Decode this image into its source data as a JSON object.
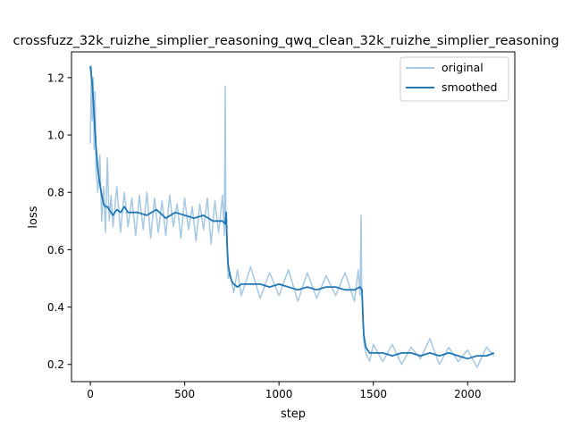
{
  "chart_data": {
    "type": "line",
    "title": "crossfuzz_32k_ruizhe_simplier_reasoning_qwq_clean_32k_ruizhe_simplier_reasoning",
    "xlabel": "step",
    "ylabel": "loss",
    "xlim": [
      -100,
      2250
    ],
    "ylim": [
      0.14,
      1.29
    ],
    "x_ticks": [
      0,
      500,
      1000,
      1500,
      2000
    ],
    "y_ticks": [
      0.2,
      0.4,
      0.6,
      0.8,
      1.0,
      1.2
    ],
    "x_tick_labels": [
      "0",
      "500",
      "1000",
      "1500",
      "2000"
    ],
    "y_tick_labels": [
      "0.2",
      "0.4",
      "0.6",
      "0.8",
      "1.0",
      "1.2"
    ],
    "grid": false,
    "legend_position": "top-right",
    "series": [
      {
        "name": "original",
        "color": "#a6c8e2",
        "x": [
          0,
          5,
          10,
          15,
          20,
          25,
          30,
          40,
          50,
          60,
          70,
          80,
          90,
          100,
          110,
          120,
          140,
          160,
          180,
          200,
          220,
          240,
          260,
          280,
          300,
          320,
          340,
          360,
          380,
          400,
          420,
          440,
          460,
          480,
          500,
          520,
          540,
          560,
          580,
          600,
          620,
          640,
          660,
          680,
          700,
          710,
          715,
          718,
          720,
          725,
          730,
          740,
          760,
          780,
          800,
          850,
          900,
          950,
          1000,
          1050,
          1100,
          1150,
          1200,
          1250,
          1300,
          1350,
          1400,
          1420,
          1430,
          1435,
          1438,
          1440,
          1445,
          1450,
          1460,
          1480,
          1500,
          1550,
          1600,
          1650,
          1700,
          1750,
          1800,
          1850,
          1900,
          1950,
          2000,
          2050,
          2100,
          2140
        ],
        "y": [
          0.97,
          1.24,
          1.05,
          1.2,
          0.95,
          1.15,
          0.88,
          0.8,
          0.93,
          0.7,
          0.82,
          0.66,
          0.92,
          0.7,
          0.79,
          0.68,
          0.82,
          0.66,
          0.8,
          0.68,
          0.78,
          0.65,
          0.79,
          0.67,
          0.8,
          0.64,
          0.78,
          0.66,
          0.77,
          0.65,
          0.79,
          0.68,
          0.76,
          0.64,
          0.78,
          0.67,
          0.75,
          0.63,
          0.76,
          0.67,
          0.78,
          0.62,
          0.77,
          0.66,
          0.79,
          0.65,
          1.17,
          0.7,
          0.68,
          0.6,
          0.5,
          0.52,
          0.45,
          0.53,
          0.44,
          0.54,
          0.43,
          0.52,
          0.44,
          0.53,
          0.42,
          0.52,
          0.43,
          0.51,
          0.44,
          0.52,
          0.42,
          0.53,
          0.44,
          0.72,
          0.48,
          0.46,
          0.38,
          0.28,
          0.24,
          0.21,
          0.27,
          0.21,
          0.27,
          0.2,
          0.26,
          0.22,
          0.29,
          0.2,
          0.26,
          0.21,
          0.25,
          0.19,
          0.26,
          0.23
        ]
      },
      {
        "name": "smoothed",
        "color": "#1f77b4",
        "x": [
          0,
          10,
          20,
          30,
          40,
          50,
          60,
          70,
          80,
          90,
          100,
          120,
          140,
          160,
          180,
          200,
          250,
          300,
          350,
          400,
          450,
          500,
          550,
          600,
          650,
          700,
          715,
          720,
          725,
          730,
          740,
          750,
          760,
          780,
          800,
          850,
          900,
          950,
          1000,
          1050,
          1100,
          1150,
          1200,
          1250,
          1300,
          1350,
          1400,
          1430,
          1440,
          1445,
          1450,
          1460,
          1470,
          1480,
          1500,
          1550,
          1600,
          1650,
          1700,
          1750,
          1800,
          1850,
          1900,
          1950,
          2000,
          2050,
          2100,
          2140
        ],
        "y": [
          1.24,
          1.18,
          1.07,
          0.96,
          0.88,
          0.83,
          0.79,
          0.76,
          0.75,
          0.75,
          0.74,
          0.72,
          0.74,
          0.73,
          0.75,
          0.73,
          0.73,
          0.72,
          0.74,
          0.71,
          0.73,
          0.72,
          0.71,
          0.72,
          0.7,
          0.7,
          0.69,
          0.73,
          0.62,
          0.55,
          0.51,
          0.49,
          0.48,
          0.47,
          0.48,
          0.48,
          0.48,
          0.47,
          0.48,
          0.47,
          0.46,
          0.47,
          0.46,
          0.47,
          0.47,
          0.46,
          0.46,
          0.47,
          0.46,
          0.36,
          0.3,
          0.26,
          0.25,
          0.24,
          0.24,
          0.24,
          0.23,
          0.24,
          0.24,
          0.23,
          0.24,
          0.23,
          0.24,
          0.23,
          0.22,
          0.23,
          0.23,
          0.24
        ]
      }
    ]
  }
}
